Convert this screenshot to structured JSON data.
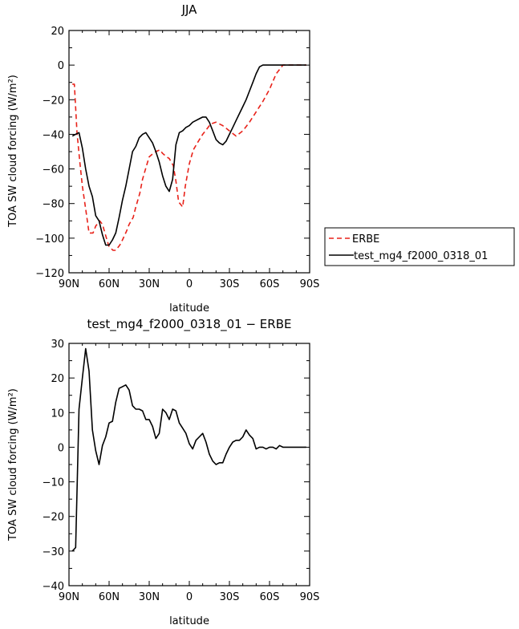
{
  "chart_data": [
    {
      "type": "line",
      "title": "JJA",
      "xlabel": "latitude",
      "ylabel": "TOA SW cloud forcing (W/m²)",
      "xlim": [
        -90,
        90
      ],
      "ylim": [
        -120,
        20
      ],
      "xticks": [
        -90,
        -60,
        -30,
        0,
        30,
        60,
        90
      ],
      "xtick_labels": [
        "90N",
        "60N",
        "30N",
        "0",
        "30S",
        "60S",
        "90S"
      ],
      "yticks": [
        -120,
        -100,
        -80,
        -60,
        -40,
        -20,
        0,
        20
      ],
      "ytick_labels": [
        "−120",
        "−100",
        "−80",
        "−60",
        "−40",
        "−20",
        "0",
        "20"
      ],
      "legend": {
        "placement": "right-outside",
        "entries": [
          "ERBE",
          "test_mg4_f2000_0318_01"
        ]
      },
      "series": [
        {
          "name": "ERBE",
          "color": "#e8221a",
          "dash": "dashed",
          "x": [
            -87.5,
            -86,
            -84,
            -82,
            -80,
            -77,
            -75,
            -72,
            -70,
            -67,
            -65,
            -62,
            -60,
            -57,
            -55,
            -52,
            -50,
            -47,
            -45,
            -42,
            -40,
            -37,
            -35,
            -32,
            -30,
            -27,
            -25,
            -22,
            -20,
            -17,
            -15,
            -12,
            -10,
            -8,
            -5,
            -3,
            0,
            3,
            6,
            10,
            13,
            16,
            20,
            25,
            30,
            35,
            40,
            45,
            50,
            55,
            60,
            65,
            67,
            70,
            75,
            80,
            85,
            87.5
          ],
          "y": [
            -11,
            -11,
            -39,
            -55,
            -70,
            -86,
            -97,
            -97,
            -93,
            -90,
            -92,
            -100,
            -105,
            -107,
            -107,
            -104,
            -101,
            -96,
            -92,
            -88,
            -82,
            -74,
            -66,
            -58,
            -53,
            -51,
            -50,
            -49,
            -51,
            -53,
            -54,
            -58,
            -67,
            -79,
            -82,
            -70,
            -57,
            -49,
            -45,
            -40,
            -37,
            -34,
            -33,
            -35,
            -38,
            -41,
            -38,
            -33,
            -27,
            -21,
            -14,
            -5,
            -3,
            0,
            0,
            0,
            0,
            0
          ]
        },
        {
          "name": "test_mg4_f2000_0318_01",
          "color": "#000000",
          "dash": "solid",
          "x": [
            -87.5,
            -85,
            -82.5,
            -80,
            -77.5,
            -75,
            -72.5,
            -70,
            -67.5,
            -65,
            -62.5,
            -60,
            -57.5,
            -55,
            -52.5,
            -50,
            -47.5,
            -45,
            -42.5,
            -40,
            -37.5,
            -35,
            -32.5,
            -30,
            -27.5,
            -25,
            -22.5,
            -20,
            -17.5,
            -15,
            -12.5,
            -10,
            -7.5,
            -5,
            -2.5,
            0,
            2.5,
            5,
            7.5,
            10,
            12.5,
            15,
            17.5,
            20,
            22.5,
            25,
            27.5,
            30,
            32.5,
            35,
            37.5,
            40,
            42.5,
            45,
            47.5,
            50,
            52.5,
            55,
            57.5,
            60,
            62.5,
            65,
            67.5,
            70,
            72.5,
            75,
            77.5,
            80,
            82.5,
            85,
            87.5
          ],
          "y": [
            -41,
            -40,
            -39,
            -48,
            -60,
            -70,
            -76,
            -87,
            -90,
            -98,
            -104,
            -104,
            -101,
            -97,
            -88,
            -78,
            -70,
            -60,
            -50,
            -47,
            -42,
            -40,
            -39,
            -42,
            -45,
            -50,
            -56,
            -64,
            -70,
            -73,
            -66,
            -46,
            -39,
            -38,
            -36,
            -35,
            -33,
            -32,
            -31,
            -30,
            -30,
            -33,
            -38,
            -43,
            -45,
            -46,
            -44,
            -40,
            -36,
            -32,
            -28,
            -24,
            -20,
            -15,
            -10,
            -5,
            -1,
            0,
            0,
            0,
            0,
            0,
            0,
            0,
            0,
            0,
            0,
            0,
            0,
            0,
            0
          ]
        }
      ]
    },
    {
      "type": "line",
      "title": "test_mg4_f2000_0318_01 − ERBE",
      "xlabel": "latitude",
      "ylabel": "TOA SW cloud forcing (W/m²)",
      "xlim": [
        -90,
        90
      ],
      "ylim": [
        -40,
        30
      ],
      "xticks": [
        -90,
        -60,
        -30,
        0,
        30,
        60,
        90
      ],
      "xtick_labels": [
        "90N",
        "60N",
        "30N",
        "0",
        "30S",
        "60S",
        "90S"
      ],
      "yticks": [
        -40,
        -30,
        -20,
        -10,
        0,
        10,
        20,
        30
      ],
      "ytick_labels": [
        "−40",
        "−30",
        "−20",
        "−10",
        "0",
        "10",
        "20",
        "30"
      ],
      "series": [
        {
          "color": "#000000",
          "dash": "solid",
          "x": [
            -87.5,
            -85,
            -82.5,
            -80,
            -77.5,
            -75,
            -72.5,
            -70,
            -67.5,
            -65,
            -62.5,
            -60,
            -57.5,
            -55,
            -52.5,
            -50,
            -47.5,
            -45,
            -42.5,
            -40,
            -37.5,
            -35,
            -32.5,
            -30,
            -27.5,
            -25,
            -22.5,
            -20,
            -17.5,
            -15,
            -12.5,
            -10,
            -7.5,
            -5,
            -2.5,
            0,
            2.5,
            5,
            7.5,
            10,
            12.5,
            15,
            17.5,
            20,
            22.5,
            25,
            27.5,
            30,
            32.5,
            35,
            37.5,
            40,
            42.5,
            45,
            47.5,
            50,
            52.5,
            55,
            57.5,
            60,
            62.5,
            65,
            67.5,
            70,
            72.5,
            75,
            77.5,
            80,
            82.5,
            85,
            87.5
          ],
          "y": [
            -30,
            -29,
            11,
            20,
            28.5,
            22,
            5,
            -1,
            -5,
            0.5,
            3,
            7,
            7.5,
            13,
            17,
            17.5,
            18,
            16.5,
            12,
            11,
            11,
            10.5,
            8,
            8,
            6,
            2.5,
            4,
            11,
            10,
            8,
            11,
            10.5,
            7,
            5.5,
            4,
            1,
            -0.5,
            2,
            3,
            4,
            1.5,
            -2,
            -4,
            -5,
            -4.5,
            -4.5,
            -2,
            0,
            1.5,
            2,
            2,
            3,
            5,
            3.5,
            2.5,
            -0.5,
            0,
            0,
            -0.5,
            0,
            0,
            -0.5,
            0.5,
            0,
            0,
            0,
            0,
            0,
            0,
            0,
            0
          ]
        }
      ]
    }
  ]
}
